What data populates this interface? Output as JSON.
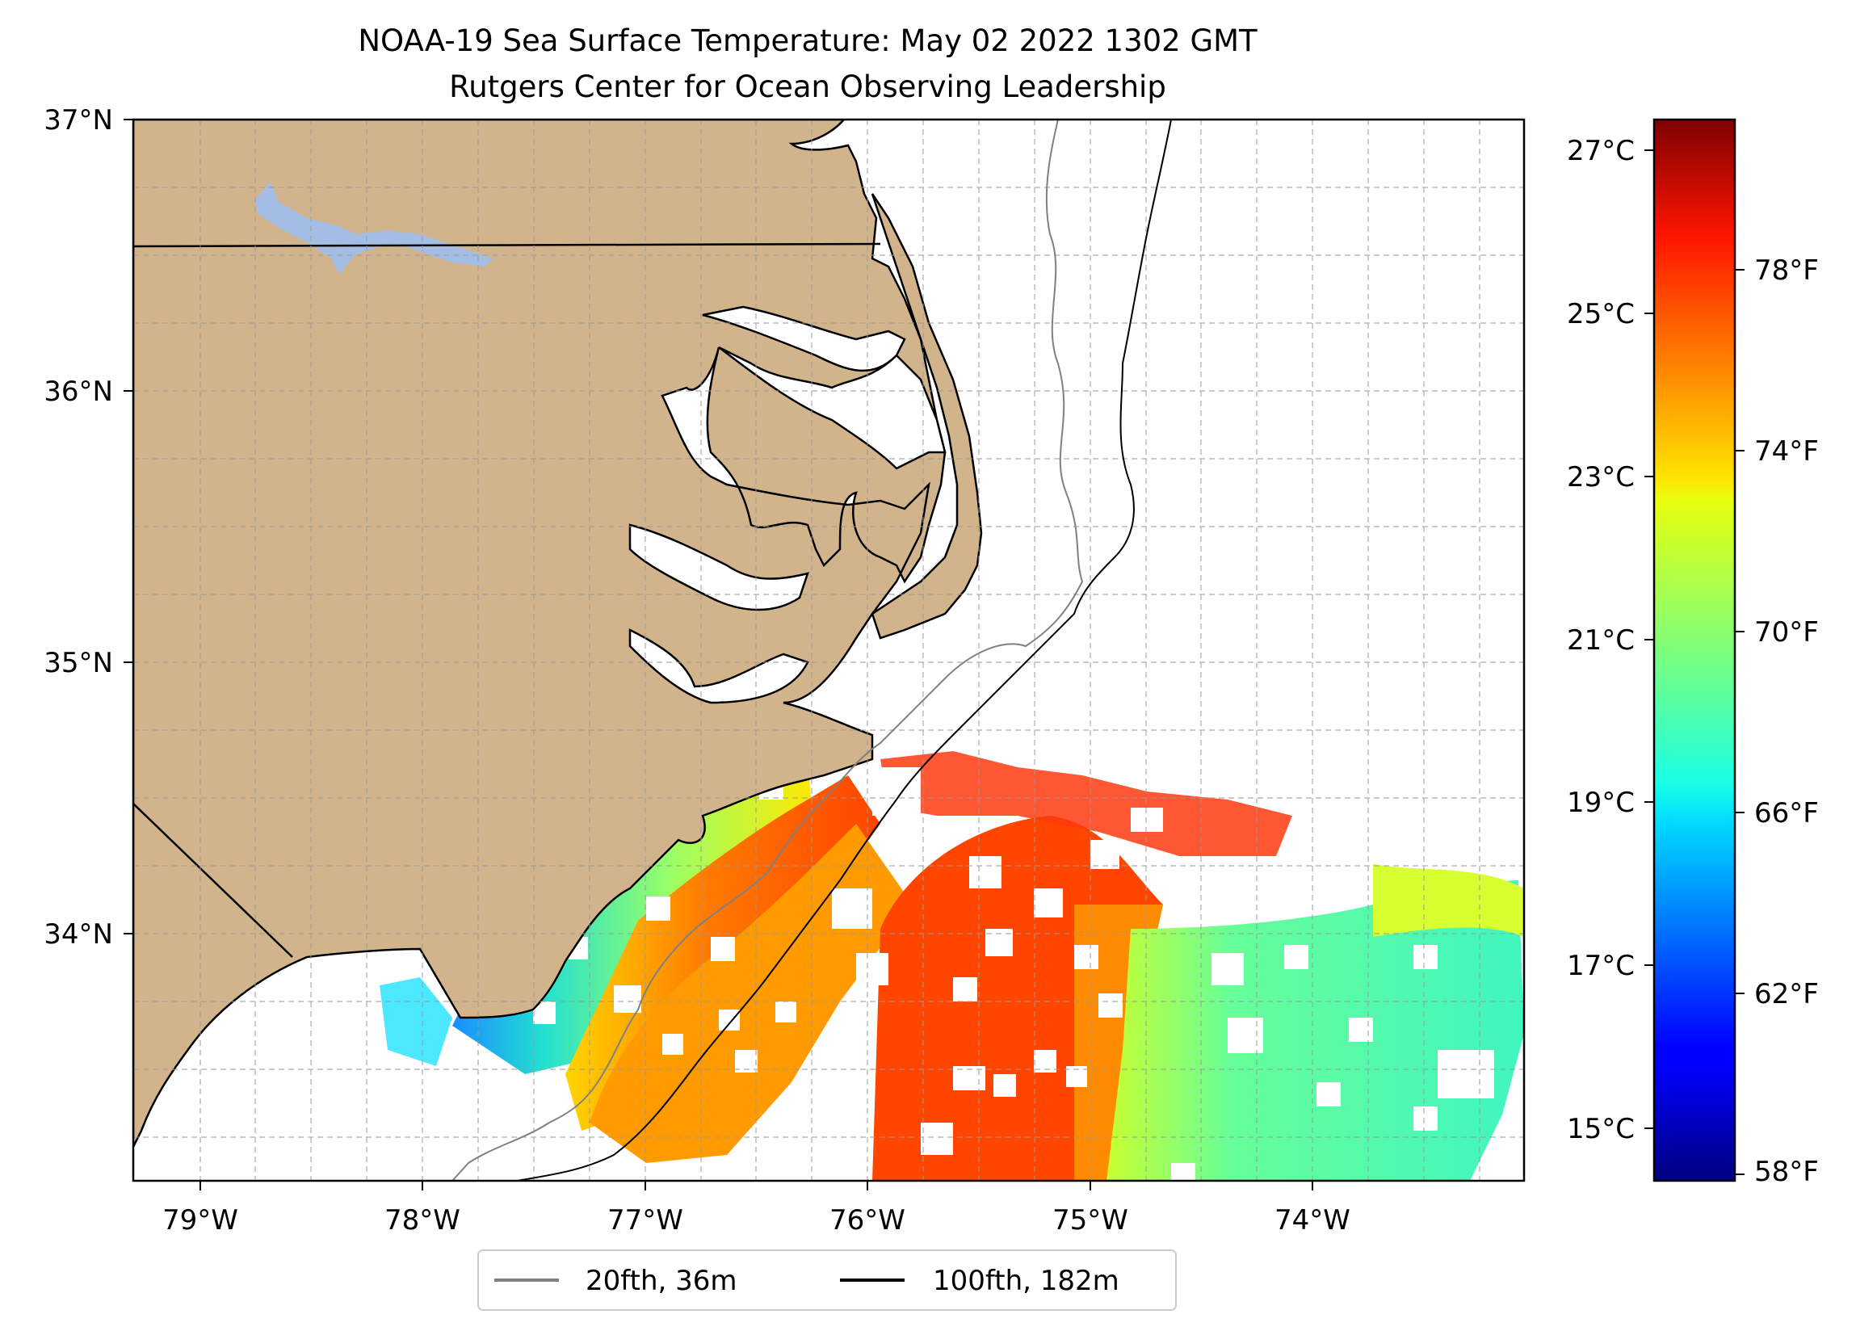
{
  "title": {
    "line1": "NOAA-19 Sea Surface Temperature: May 02 2022 1302 GMT",
    "line2": "Rutgers Center for Ocean Observing Leadership"
  },
  "map": {
    "lon_range": [
      -79.3,
      -73.05
    ],
    "lat_range": [
      33.1,
      37.0
    ],
    "gridlines": true,
    "x_ticks": [
      "79°W",
      "78°W",
      "77°W",
      "76°W",
      "75°W",
      "74°W"
    ],
    "y_ticks": [
      "37°N",
      "36°N",
      "35°N",
      "34°N"
    ],
    "land_color": "#d2b48c",
    "lake_color": "#a4bde4"
  },
  "legend": {
    "placement": "bottom-center",
    "items": [
      {
        "label": "20fth, 36m",
        "color": "#808080"
      },
      {
        "label": "100fth, 182m",
        "color": "#000000"
      }
    ]
  },
  "colorbar": {
    "colormap": "jet",
    "range_c": [
      14.5,
      27.5
    ],
    "celsius_ticks": [
      "27°C",
      "25°C",
      "23°C",
      "21°C",
      "19°C",
      "17°C",
      "15°C"
    ],
    "fahrenheit_ticks": [
      "78°F",
      "74°F",
      "70°F",
      "66°F",
      "62°F",
      "58°F"
    ]
  }
}
